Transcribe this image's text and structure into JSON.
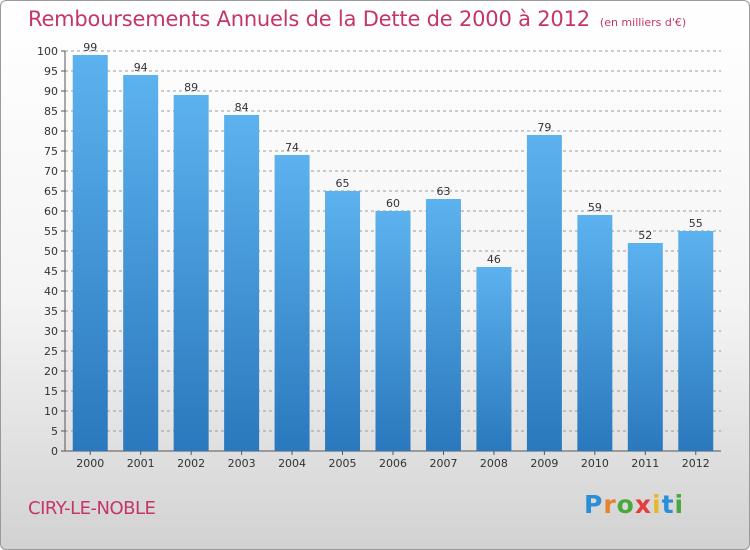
{
  "title": "Remboursements Annuels de la Dette de 2000 à 2012",
  "subtitle": "(en milliers d'€)",
  "town": "CIRY-LE-NOBLE",
  "logo": {
    "letters": [
      "P",
      "r",
      "o",
      "x",
      "i",
      "t",
      "i"
    ],
    "colors": [
      "#2a8fd8",
      "#e5832e",
      "#4aa83c",
      "#e53c3c",
      "#e5b82e",
      "#2a8fd8",
      "#4aa83c"
    ]
  },
  "colors": {
    "title": "#c4356b",
    "bar_top": "#5cb2ee",
    "bar_bottom": "#2a78bd",
    "grid": "#9a9a9a"
  },
  "chart_data": {
    "type": "bar",
    "categories": [
      "2000",
      "2001",
      "2002",
      "2003",
      "2004",
      "2005",
      "2006",
      "2007",
      "2008",
      "2009",
      "2010",
      "2011",
      "2012"
    ],
    "values": [
      99,
      94,
      89,
      84,
      74,
      65,
      60,
      63,
      46,
      79,
      59,
      52,
      55
    ],
    "ylim": [
      0,
      100
    ],
    "yticks": [
      0,
      5,
      10,
      15,
      20,
      25,
      30,
      35,
      40,
      45,
      50,
      55,
      60,
      65,
      70,
      75,
      80,
      85,
      90,
      95,
      100
    ],
    "grid": true,
    "data_labels": true
  }
}
